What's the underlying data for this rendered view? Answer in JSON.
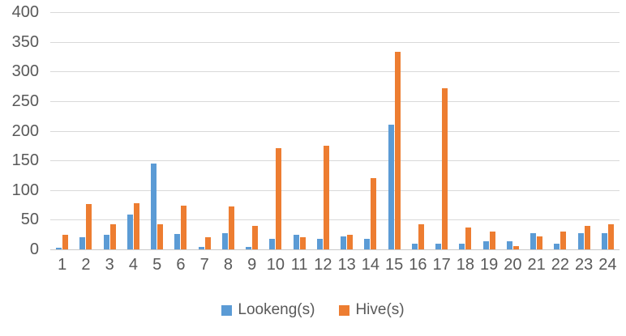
{
  "chart_data": {
    "type": "bar",
    "title": "",
    "xlabel": "",
    "ylabel": "",
    "categories": [
      "1",
      "2",
      "3",
      "4",
      "5",
      "6",
      "7",
      "8",
      "9",
      "10",
      "11",
      "12",
      "13",
      "14",
      "15",
      "16",
      "17",
      "18",
      "19",
      "20",
      "21",
      "22",
      "23",
      "24"
    ],
    "series": [
      {
        "name": "Lookeng(s)",
        "color": "#5B9BD5",
        "values": [
          3,
          21,
          25,
          59,
          145,
          26,
          4,
          28,
          4,
          18,
          25,
          18,
          22,
          18,
          210,
          9,
          10,
          10,
          13,
          14,
          27,
          9,
          28,
          28
        ]
      },
      {
        "name": "Hive(s)",
        "color": "#ED7D31",
        "values": [
          25,
          77,
          43,
          78,
          42,
          74,
          20,
          72,
          40,
          170,
          20,
          175,
          25,
          120,
          333,
          42,
          272,
          37,
          30,
          5,
          22,
          30,
          40,
          42
        ]
      }
    ],
    "ylim": [
      0,
      400
    ],
    "ytick_step": 50,
    "ytick_labels": [
      "0",
      "50",
      "100",
      "150",
      "200",
      "250",
      "300",
      "350",
      "400"
    ],
    "grid": true,
    "legend_position": "bottom",
    "gridline_color": "#D9D9D9",
    "text_color": "#595959"
  }
}
